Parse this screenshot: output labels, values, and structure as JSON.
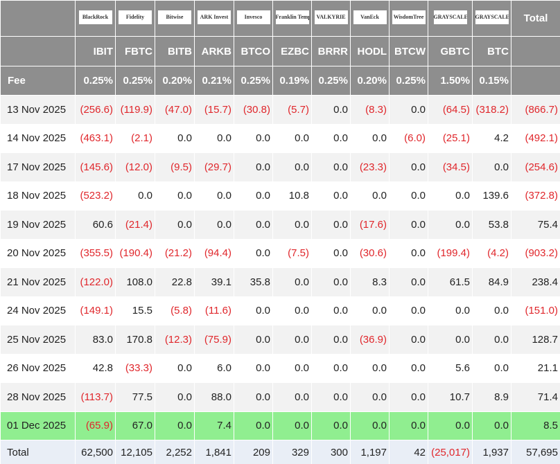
{
  "table": {
    "logos": [
      "BlackRock",
      "Fidelity",
      "Bitwise",
      "ARK Invest",
      "Invesco",
      "Franklin Templeton",
      "VALKYRIE",
      "VanEck",
      "WisdomTree",
      "GRAYSCALE",
      "GRAYSCALE"
    ],
    "total_header": "Total",
    "tickers": [
      "IBIT",
      "FBTC",
      "BITB",
      "ARKB",
      "BTCO",
      "EZBC",
      "BRRR",
      "HODL",
      "BTCW",
      "GBTC",
      "BTC"
    ],
    "fee_label": "Fee",
    "fees": [
      "0.25%",
      "0.25%",
      "0.20%",
      "0.21%",
      "0.25%",
      "0.19%",
      "0.25%",
      "0.20%",
      "0.25%",
      "1.50%",
      "0.15%"
    ],
    "rows": [
      {
        "date": "13 Nov 2025",
        "values": [
          "(256.6)",
          "(119.9)",
          "(47.0)",
          "(15.7)",
          "(30.8)",
          "(5.7)",
          "0.0",
          "(8.3)",
          "0.0",
          "(64.5)",
          "(318.2)",
          "(866.7)"
        ]
      },
      {
        "date": "14 Nov 2025",
        "values": [
          "(463.1)",
          "(2.1)",
          "0.0",
          "0.0",
          "0.0",
          "0.0",
          "0.0",
          "0.0",
          "(6.0)",
          "(25.1)",
          "4.2",
          "(492.1)"
        ]
      },
      {
        "date": "17 Nov 2025",
        "values": [
          "(145.6)",
          "(12.0)",
          "(9.5)",
          "(29.7)",
          "0.0",
          "0.0",
          "0.0",
          "(23.3)",
          "0.0",
          "(34.5)",
          "0.0",
          "(254.6)"
        ]
      },
      {
        "date": "18 Nov 2025",
        "values": [
          "(523.2)",
          "0.0",
          "0.0",
          "0.0",
          "0.0",
          "10.8",
          "0.0",
          "0.0",
          "0.0",
          "0.0",
          "139.6",
          "(372.8)"
        ]
      },
      {
        "date": "19 Nov 2025",
        "values": [
          "60.6",
          "(21.4)",
          "0.0",
          "0.0",
          "0.0",
          "0.0",
          "0.0",
          "(17.6)",
          "0.0",
          "0.0",
          "53.8",
          "75.4"
        ]
      },
      {
        "date": "20 Nov 2025",
        "values": [
          "(355.5)",
          "(190.4)",
          "(21.2)",
          "(94.4)",
          "0.0",
          "(7.5)",
          "0.0",
          "(30.6)",
          "0.0",
          "(199.4)",
          "(4.2)",
          "(903.2)"
        ]
      },
      {
        "date": "21 Nov 2025",
        "values": [
          "(122.0)",
          "108.0",
          "22.8",
          "39.1",
          "35.8",
          "0.0",
          "0.0",
          "8.3",
          "0.0",
          "61.5",
          "84.9",
          "238.4"
        ]
      },
      {
        "date": "24 Nov 2025",
        "values": [
          "(149.1)",
          "15.5",
          "(5.8)",
          "(11.6)",
          "0.0",
          "0.0",
          "0.0",
          "0.0",
          "0.0",
          "0.0",
          "0.0",
          "(151.0)"
        ]
      },
      {
        "date": "25 Nov 2025",
        "values": [
          "83.0",
          "170.8",
          "(12.3)",
          "(75.9)",
          "0.0",
          "0.0",
          "0.0",
          "(36.9)",
          "0.0",
          "0.0",
          "0.0",
          "128.7"
        ]
      },
      {
        "date": "26 Nov 2025",
        "values": [
          "42.8",
          "(33.3)",
          "0.0",
          "6.0",
          "0.0",
          "0.0",
          "0.0",
          "0.0",
          "0.0",
          "5.6",
          "0.0",
          "21.1"
        ]
      },
      {
        "date": "28 Nov 2025",
        "values": [
          "(113.7)",
          "77.5",
          "0.0",
          "88.0",
          "0.0",
          "0.0",
          "0.0",
          "0.0",
          "0.0",
          "10.7",
          "8.9",
          "71.4"
        ]
      },
      {
        "date": "01 Dec 2025",
        "values": [
          "(65.9)",
          "67.0",
          "0.0",
          "7.4",
          "0.0",
          "0.0",
          "0.0",
          "0.0",
          "0.0",
          "0.0",
          "0.0",
          "8.5"
        ]
      }
    ],
    "total_row": {
      "label": "Total",
      "values": [
        "62,500",
        "12,105",
        "2,252",
        "1,841",
        "209",
        "329",
        "300",
        "1,197",
        "42",
        "(25,017)",
        "1,937",
        "57,695"
      ]
    }
  }
}
